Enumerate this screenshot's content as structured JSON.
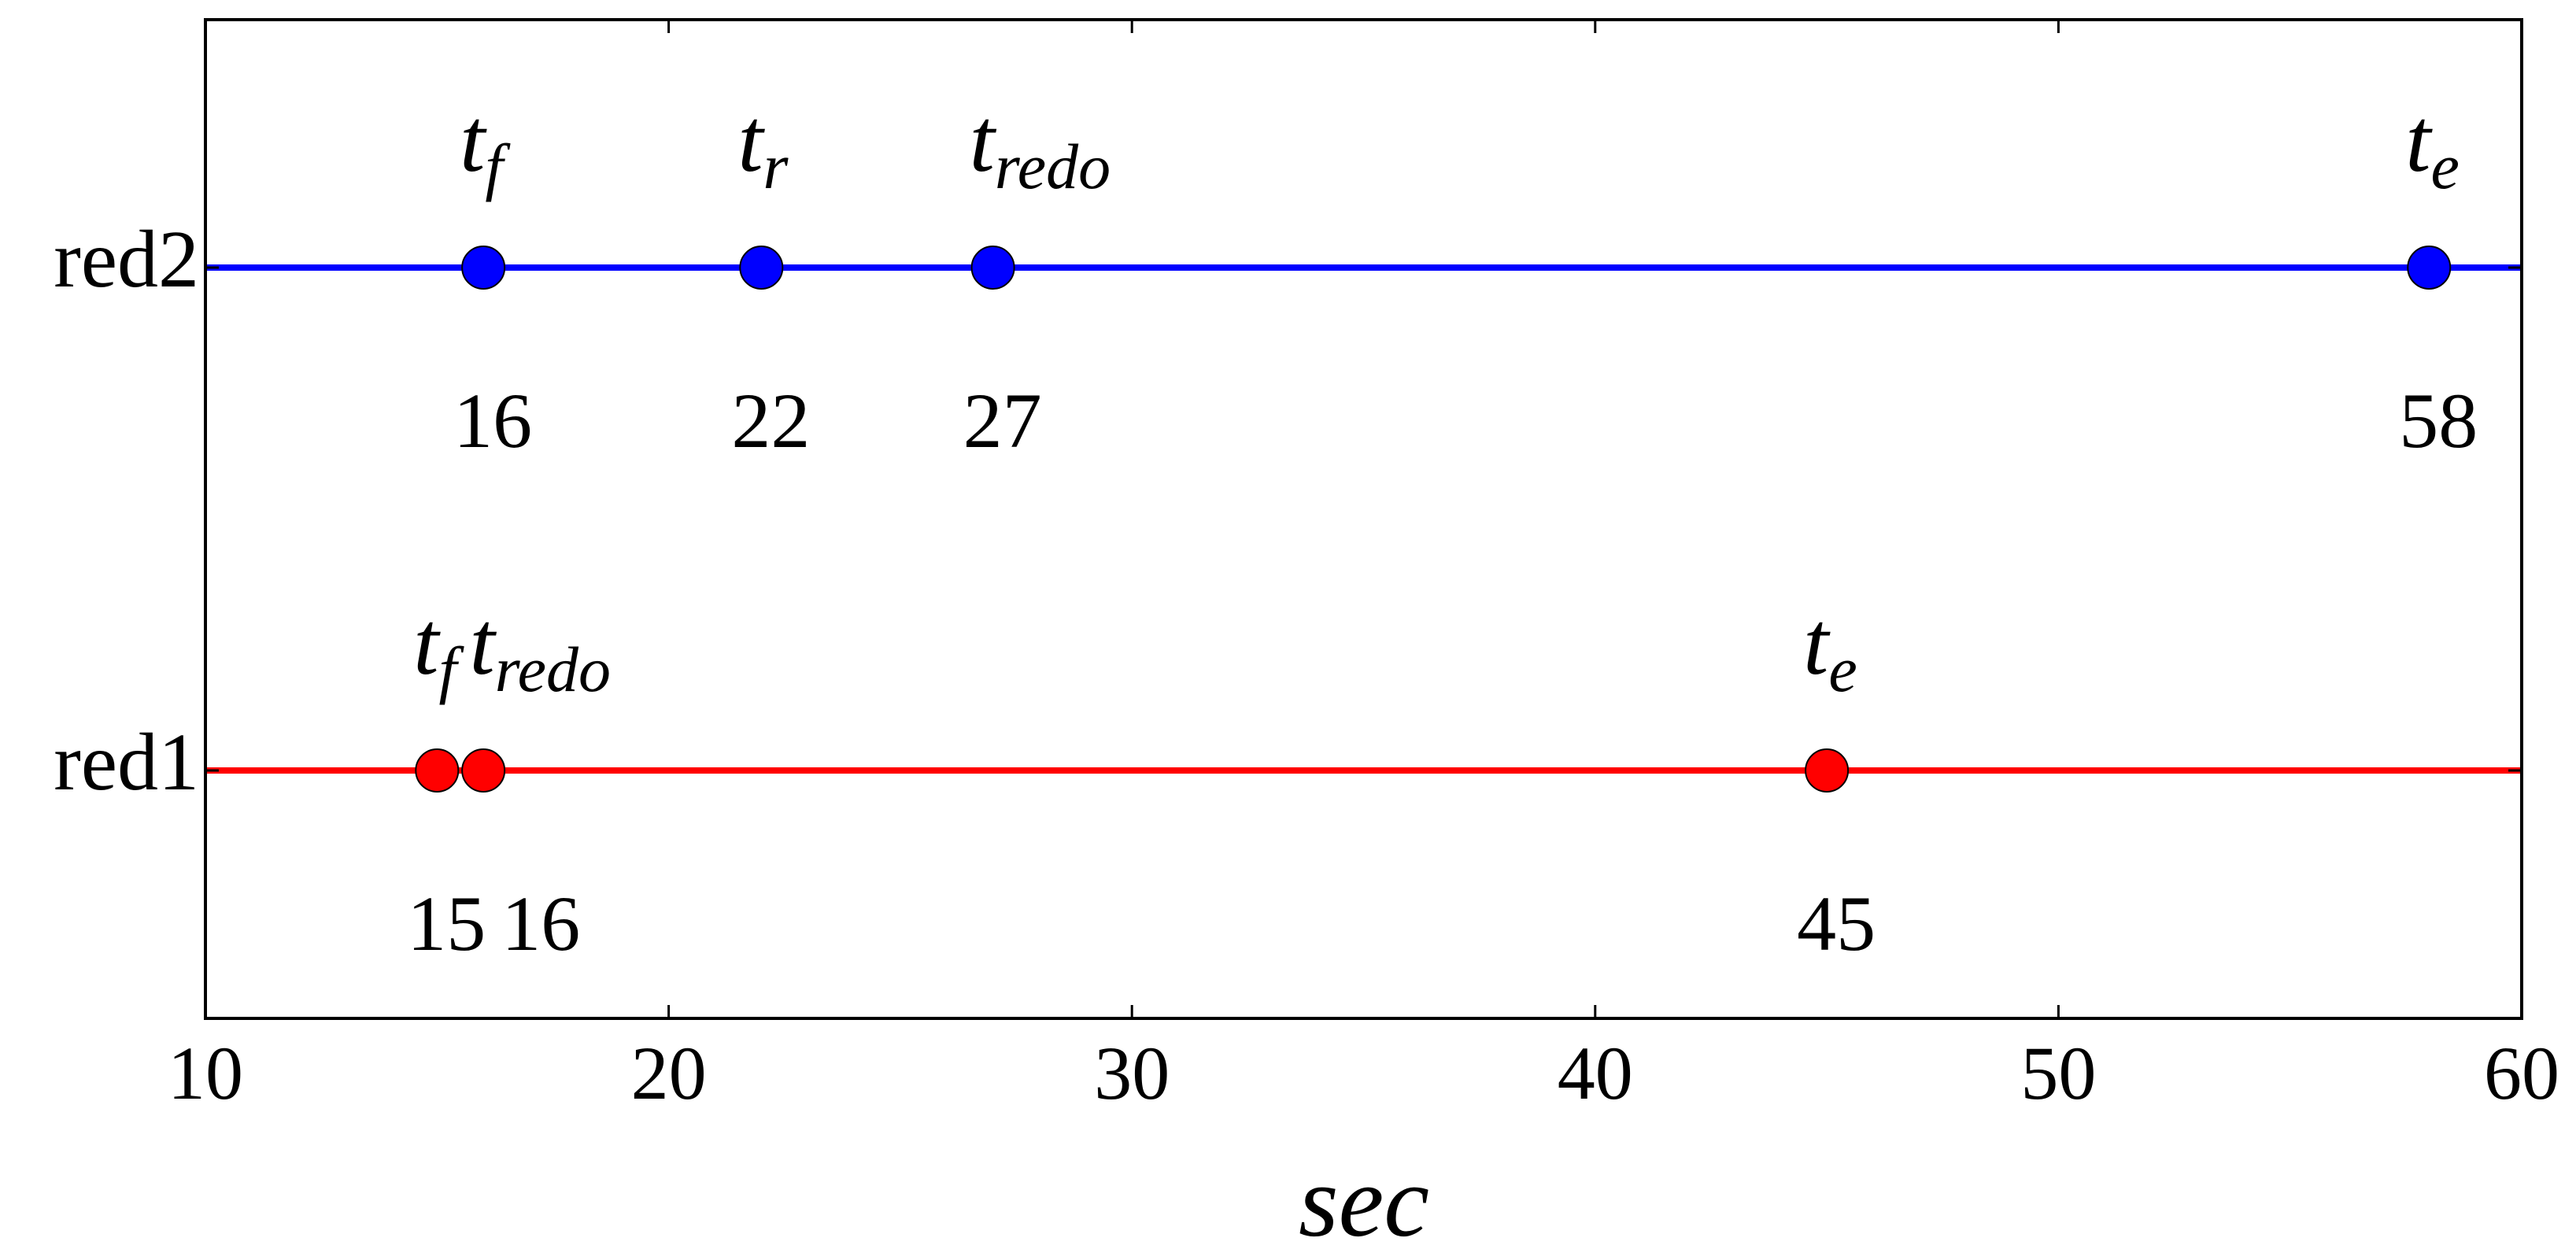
{
  "chart_data": {
    "type": "timeline",
    "xlabel": "sec",
    "xlim": [
      10,
      60
    ],
    "xticks": [
      10,
      20,
      30,
      40,
      50,
      60
    ],
    "series": [
      {
        "name": "red2",
        "color": "#0000ff",
        "x": [
          16,
          22,
          27,
          58
        ],
        "labels": [
          {
            "main": "t",
            "sub": "f"
          },
          {
            "main": "t",
            "sub": "r"
          },
          {
            "main": "t",
            "sub": "redo"
          },
          {
            "main": "t",
            "sub": "e"
          }
        ]
      },
      {
        "name": "red1",
        "color": "#ff0000",
        "x": [
          15,
          16,
          45
        ],
        "labels": [
          {
            "main": "t",
            "sub": "f"
          },
          {
            "main": "t",
            "sub": "redo"
          },
          {
            "main": "t",
            "sub": "e"
          }
        ]
      }
    ]
  }
}
